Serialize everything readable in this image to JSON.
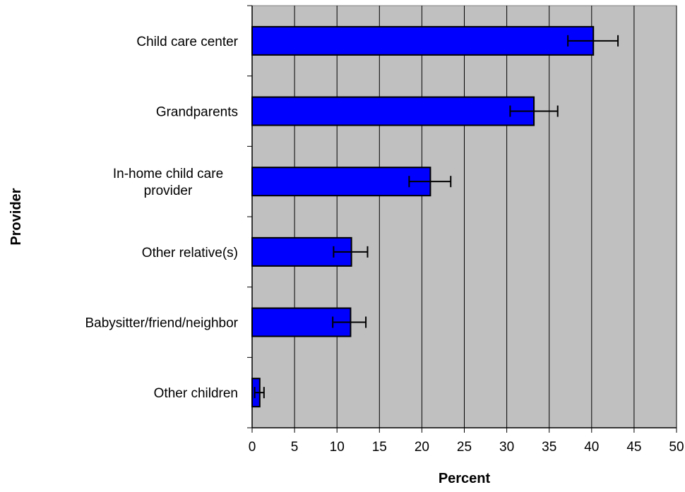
{
  "chart_data": {
    "type": "bar",
    "orientation": "horizontal",
    "categories": [
      [
        "Child care center"
      ],
      [
        "Grandparents"
      ],
      [
        "In-home child care",
        "provider"
      ],
      [
        "Other relative(s)"
      ],
      [
        "Babysitter/friend/neighbor"
      ],
      [
        "Other children"
      ]
    ],
    "values": [
      40.2,
      33.2,
      21.0,
      11.7,
      11.6,
      0.9
    ],
    "error_low": [
      37.2,
      30.4,
      18.5,
      9.6,
      9.5,
      0.3
    ],
    "error_high": [
      43.1,
      36.0,
      23.4,
      13.6,
      13.4,
      1.4
    ],
    "xlabel": "Percent",
    "ylabel": "Provider",
    "xlim": [
      0,
      50
    ],
    "xticks": [
      0,
      5,
      10,
      15,
      20,
      25,
      30,
      35,
      40,
      45,
      50
    ],
    "grid": "vertical",
    "legend": "none"
  },
  "colors": {
    "plot_background": "#c0c0c0",
    "bar_fill": "#0000ff",
    "bar_stroke": "#000000",
    "gridline": "#000000",
    "error_bar": "#000000"
  }
}
